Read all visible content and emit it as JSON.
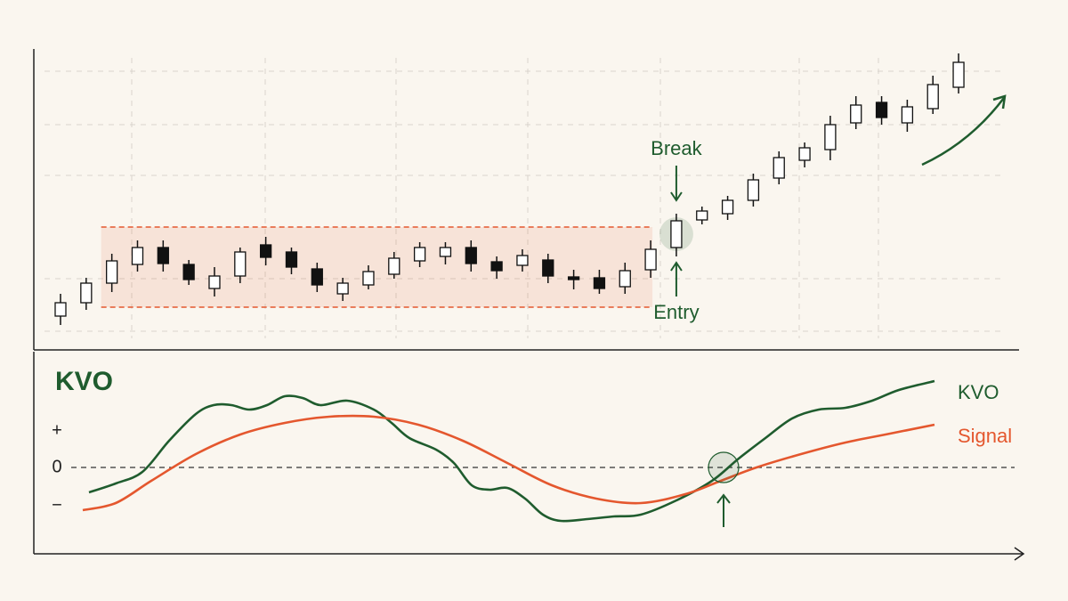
{
  "chart_data": [
    {
      "type": "candlestick",
      "ylim": [
        0,
        338
      ],
      "up_color": "#ffffff",
      "down_color": "#111111",
      "candles": [
        {
          "open": 38,
          "high": 63,
          "low": 28,
          "close": 53
        },
        {
          "open": 53,
          "high": 81,
          "low": 45,
          "close": 75
        },
        {
          "open": 75,
          "high": 108,
          "low": 65,
          "close": 100
        },
        {
          "open": 96,
          "high": 123,
          "low": 88,
          "close": 115
        },
        {
          "open": 115,
          "high": 123,
          "low": 88,
          "close": 97
        },
        {
          "open": 96,
          "high": 101,
          "low": 73,
          "close": 79
        },
        {
          "open": 69,
          "high": 93,
          "low": 60,
          "close": 83
        },
        {
          "open": 83,
          "high": 115,
          "low": 75,
          "close": 110
        },
        {
          "open": 118,
          "high": 127,
          "low": 95,
          "close": 104
        },
        {
          "open": 110,
          "high": 115,
          "low": 85,
          "close": 93
        },
        {
          "open": 91,
          "high": 98,
          "low": 65,
          "close": 73
        },
        {
          "open": 63,
          "high": 81,
          "low": 55,
          "close": 75
        },
        {
          "open": 73,
          "high": 95,
          "low": 68,
          "close": 88
        },
        {
          "open": 85,
          "high": 110,
          "low": 80,
          "close": 103
        },
        {
          "open": 100,
          "high": 121,
          "low": 93,
          "close": 115
        },
        {
          "open": 105,
          "high": 121,
          "low": 96,
          "close": 115
        },
        {
          "open": 115,
          "high": 123,
          "low": 88,
          "close": 97
        },
        {
          "open": 99,
          "high": 105,
          "low": 80,
          "close": 89
        },
        {
          "open": 95,
          "high": 113,
          "low": 88,
          "close": 106
        },
        {
          "open": 101,
          "high": 108,
          "low": 75,
          "close": 83
        },
        {
          "open": 82,
          "high": 90,
          "low": 68,
          "close": 79
        },
        {
          "open": 81,
          "high": 90,
          "low": 63,
          "close": 69
        },
        {
          "open": 71,
          "high": 98,
          "low": 63,
          "close": 89
        },
        {
          "open": 90,
          "high": 123,
          "low": 81,
          "close": 113
        },
        {
          "open": 115,
          "high": 153,
          "low": 105,
          "close": 145
        },
        {
          "open": 146,
          "high": 161,
          "low": 141,
          "close": 156
        },
        {
          "open": 153,
          "high": 173,
          "low": 146,
          "close": 168
        },
        {
          "open": 168,
          "high": 198,
          "low": 161,
          "close": 191
        },
        {
          "open": 193,
          "high": 223,
          "low": 186,
          "close": 216
        },
        {
          "open": 213,
          "high": 233,
          "low": 205,
          "close": 227
        },
        {
          "open": 225,
          "high": 263,
          "low": 213,
          "close": 253
        },
        {
          "open": 255,
          "high": 285,
          "low": 248,
          "close": 275
        },
        {
          "open": 278,
          "high": 285,
          "low": 253,
          "close": 261
        },
        {
          "open": 255,
          "high": 281,
          "low": 245,
          "close": 273
        },
        {
          "open": 271,
          "high": 308,
          "low": 265,
          "close": 298
        },
        {
          "open": 295,
          "high": 333,
          "low": 288,
          "close": 323
        }
      ],
      "range": {
        "upper": 138,
        "lower": 48,
        "from": 2,
        "to": 23,
        "color": "#e4572e"
      },
      "annotations": [
        {
          "text": "Break",
          "index": 24
        },
        {
          "text": "Entry",
          "index": 24
        }
      ]
    },
    {
      "type": "line",
      "title": "KVO",
      "xlim": [
        0,
        1107
      ],
      "ylim": [
        -97,
        130
      ],
      "yticks": [
        {
          "value": 41,
          "label": "+"
        },
        0,
        {
          "value": -43,
          "label": "−"
        }
      ],
      "series": [
        {
          "name": "KVO",
          "color": "#1f5c2e",
          "x": [
            62,
            92,
            122,
            152,
            182,
            202,
            222,
            242,
            262,
            282,
            302,
            322,
            352,
            382,
            402,
            422,
            452,
            472,
            492,
            512,
            532,
            552,
            572,
            592,
            622,
            652,
            682,
            722,
            762,
            792,
            822,
            852,
            882,
            912,
            942,
            972,
            1012
          ],
          "values": [
            -28,
            -18,
            -5,
            30,
            60,
            70,
            70,
            65,
            70,
            80,
            78,
            70,
            75,
            65,
            50,
            33,
            20,
            5,
            -20,
            -25,
            -23,
            -35,
            -53,
            -60,
            -58,
            -55,
            -53,
            -37,
            -15,
            10,
            33,
            55,
            65,
            67,
            75,
            87,
            97
          ]
        },
        {
          "name": "Signal",
          "color": "#e4572e",
          "x": [
            55,
            92,
            132,
            182,
            232,
            282,
            332,
            382,
            432,
            482,
            532,
            582,
            632,
            682,
            732,
            772,
            812,
            862,
            912,
            962,
            1012
          ],
          "values": [
            -48,
            -40,
            -15,
            15,
            37,
            50,
            57,
            57,
            48,
            30,
            5,
            -20,
            -35,
            -40,
            -30,
            -15,
            0,
            15,
            28,
            38,
            48
          ]
        }
      ]
    }
  ]
}
